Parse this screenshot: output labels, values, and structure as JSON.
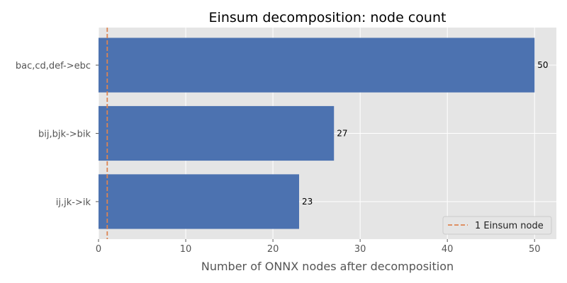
{
  "chart_data": {
    "type": "bar",
    "orientation": "horizontal",
    "title": "Einsum decomposition: node count",
    "xlabel": "Number of ONNX nodes after decomposition",
    "ylabel": "",
    "categories": [
      "ij,jk->ik",
      "bij,bjk->bik",
      "bac,cd,def->ebc"
    ],
    "values": [
      23,
      27,
      50
    ],
    "data_labels": [
      "23",
      "27",
      "50"
    ],
    "xlim": [
      0,
      52.5
    ],
    "xticks": [
      0,
      10,
      20,
      30,
      40,
      50
    ],
    "grid": true,
    "bar_color": "#4c72b0",
    "reference_line": {
      "x": 1,
      "label": "1 Einsum node",
      "color": "#dd8452",
      "style": "dashed"
    },
    "legend_position": "lower-right",
    "background": "#e5e5e5"
  }
}
